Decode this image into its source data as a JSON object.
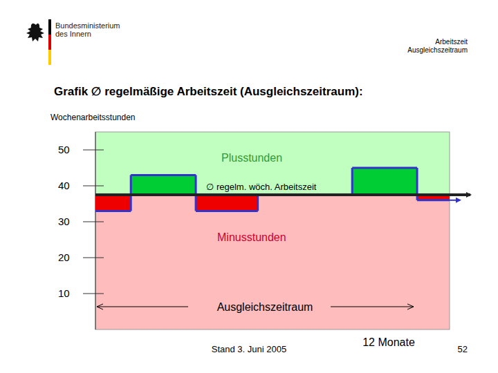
{
  "header": {
    "ministry": [
      "Bundesministerium",
      "des Innern"
    ],
    "topic": [
      "Arbeitszeit",
      "Ausgleichszeitraum"
    ]
  },
  "footer": {
    "date": "Stand 3. Juni 2005",
    "page": "52"
  },
  "chart_data": {
    "type": "step",
    "title": "Grafik ∅ regelmäßige Arbeitszeit (Ausgleichszeitraum):",
    "y_label": "Wochenarbeitsstunden",
    "x": [
      0,
      1.2,
      3.4,
      5.5,
      8.7,
      10.9
    ],
    "values": [
      33,
      43,
      33,
      37.5,
      45,
      36
    ],
    "average": {
      "value": 37.5,
      "label": "∅ regelm. wöch. Arbeitszeit"
    },
    "annotations": {
      "plus": "Plusstunden",
      "minus": "Minusstunden",
      "period": "Ausgleichszeitraum"
    },
    "xlim": [
      0,
      12
    ],
    "xticks": [
      {
        "value": 12,
        "label": "12 Monate"
      }
    ],
    "ylim": [
      0,
      55
    ],
    "yticks": [
      10,
      20,
      30,
      40,
      50
    ],
    "color": "#3333cc",
    "grid": false
  }
}
